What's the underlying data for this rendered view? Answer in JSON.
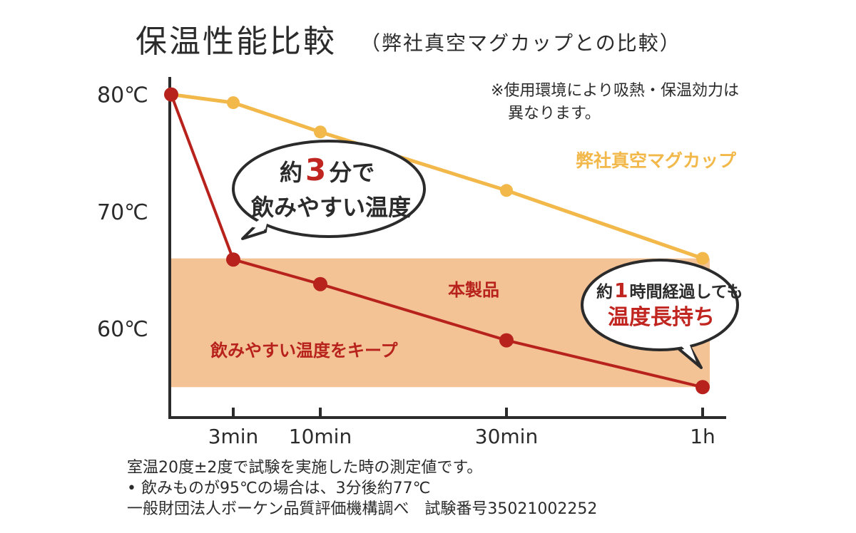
{
  "chart_data": {
    "type": "line",
    "title": "保温性能比較",
    "subtitle": "（弊社真空マグカップとの比較）",
    "x": [
      "0",
      "3min",
      "10min",
      "30min",
      "1h"
    ],
    "x_tick_labels": [
      "3min",
      "10min",
      "30min",
      "1h"
    ],
    "y_tick_labels": [
      "80℃",
      "70℃",
      "60℃"
    ],
    "y_ticks": [
      80,
      70,
      60
    ],
    "ylim": [
      52.4,
      81.5
    ],
    "series": [
      {
        "name": "弊社真空マグカップ",
        "values": [
          80.0,
          79.3,
          76.8,
          71.8,
          66.0
        ],
        "color": "#f2b84a"
      },
      {
        "name": "本製品",
        "values": [
          80.0,
          65.9,
          63.8,
          59.0,
          55.0
        ],
        "color": "#b8221c"
      }
    ],
    "band": {
      "label": "飲みやすい温度をキープ",
      "from": 55.0,
      "to": 66.0,
      "color": "#f3c396"
    },
    "note": [
      "※使用環境により吸熱・保温効力は",
      "異なります。"
    ],
    "bubble_left": {
      "line1_pre": "約",
      "line1_num": "3",
      "line1_post": "分で",
      "line2": "飲みやすい温度"
    },
    "bubble_right": {
      "line1_pre": "約",
      "line1_num": "1",
      "line1_post": "時間経過しても",
      "line2": "温度長持ち"
    },
    "footnotes": [
      "室温20度±2度で試験を実施した時の測定値です。",
      "• 飲みものが95℃の場合は、3分後約77℃",
      "一般財団法人ボーケン品質評価機構調べ　試験番号35021002252"
    ],
    "grid": false
  }
}
